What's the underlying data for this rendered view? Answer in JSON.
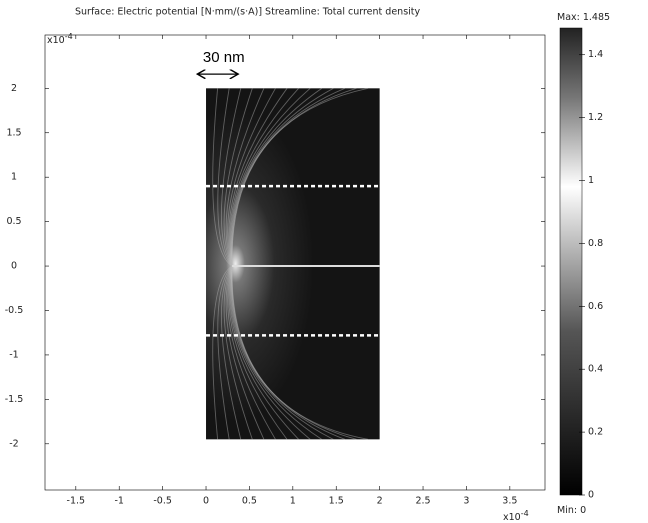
{
  "chart_data": {
    "type": "surface",
    "title": "Surface: Electric potential [N·mm/(s·A)]   Streamline: Total current density",
    "xlim": [
      -1.855,
      3.905
    ],
    "xticks": [
      -1.5,
      -1,
      -0.5,
      0,
      0.5,
      1,
      1.5,
      2,
      2.5,
      3,
      3.5
    ],
    "ylim": [
      -2.52,
      2.6
    ],
    "yticks": [
      -2,
      -1.5,
      -1,
      -0.5,
      0,
      0.5,
      1,
      1.5,
      2
    ],
    "x_multiplier": {
      "base": "x10",
      "exponent": "-4"
    },
    "y_multiplier": {
      "base": "x10",
      "exponent": "-4"
    },
    "domain": {
      "x": [
        0,
        2
      ],
      "y": [
        -1.95,
        2
      ]
    },
    "dashed_lines_y": [
      0.9,
      -0.78
    ],
    "crack": {
      "x": [
        0.3,
        2
      ],
      "y": 0
    },
    "annotation": {
      "text": "30 nm",
      "x_span": [
        -0.1,
        0.37
      ],
      "y": 2.16
    },
    "colorbar": {
      "lim": [
        0,
        1.485
      ],
      "ticks": [
        0,
        0.2,
        0.4,
        0.6,
        0.8,
        1,
        1.2,
        1.4
      ],
      "max_label": "Max:",
      "max": 1.485,
      "min_label": "Min:",
      "min": 0
    }
  }
}
